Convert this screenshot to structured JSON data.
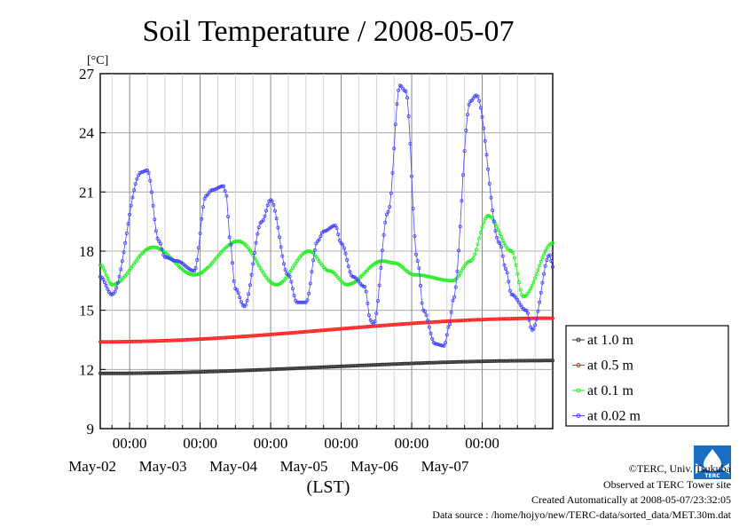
{
  "chart_data": {
    "type": "line",
    "title": "Soil Temperature / 2008-05-07",
    "ylabel": "[°C]",
    "xlabel": "(LST)",
    "ylim": [
      9,
      27
    ],
    "yticks": [
      9,
      12,
      15,
      18,
      21,
      24,
      27
    ],
    "x_unit": "hours since 2008-05-01 00:00 LST",
    "xlim": [
      14,
      168
    ],
    "xtick_labels": [
      {
        "time": "00:00",
        "date": "May-02"
      },
      {
        "time": "00:00",
        "date": "May-03"
      },
      {
        "time": "00:00",
        "date": "May-04"
      },
      {
        "time": "00:00",
        "date": "May-05"
      },
      {
        "time": "00:00",
        "date": "May-06"
      },
      {
        "time": "00:00",
        "date": "May-07"
      }
    ],
    "grid": true,
    "legend_position": "right",
    "series": [
      {
        "name": "at 1.0 m",
        "color": "#333333",
        "x": [
          14,
          168
        ],
        "y": [
          11.8,
          12.45
        ]
      },
      {
        "name": "at 0.5 m",
        "color": "#ff2222",
        "x": [
          14,
          168
        ],
        "y": [
          13.4,
          14.6
        ]
      },
      {
        "name": "at 0.1 m",
        "color": "#22ee22",
        "x": [
          14,
          18,
          32,
          46,
          61,
          74,
          85,
          92,
          98,
          110,
          114,
          121,
          134,
          140,
          146,
          154,
          158,
          168
        ],
        "y": [
          17.3,
          16.3,
          18.2,
          16.8,
          18.5,
          16.3,
          18.0,
          17.0,
          16.3,
          17.5,
          17.4,
          16.8,
          16.5,
          17.5,
          19.8,
          18.0,
          15.7,
          18.4
        ]
      },
      {
        "name": "at 0.02 m",
        "color": "#4444ff",
        "x": [
          14,
          18,
          28,
          30,
          34,
          36,
          40,
          46,
          50,
          52,
          56,
          57,
          58,
          60,
          63,
          69,
          72,
          78,
          81,
          84,
          88,
          90,
          94,
          96,
          100,
          104,
          106,
          107,
          112,
          116,
          118,
          122,
          124,
          128,
          131,
          133,
          134,
          140,
          142,
          150,
          152,
          154,
          159,
          161,
          167,
          168
        ],
        "y": [
          16.7,
          15.8,
          22.0,
          22.1,
          18.5,
          17.7,
          17.5,
          17.0,
          20.8,
          21.1,
          21.3,
          20.8,
          18.7,
          16.1,
          15.2,
          19.5,
          20.6,
          16.8,
          15.4,
          15.4,
          18.5,
          19.0,
          19.3,
          18.4,
          16.7,
          16.2,
          14.5,
          14.3,
          20.0,
          26.4,
          26.1,
          17.5,
          15.0,
          13.3,
          13.2,
          14.3,
          15.5,
          25.6,
          25.9,
          18.4,
          17.1,
          15.8,
          15.0,
          14.0,
          17.8,
          17.2
        ]
      }
    ]
  },
  "footer": {
    "copyright": "©TERC, Univ. Tsukuba",
    "observed": "Observed at TERC Tower site",
    "created": "Created Automatically at 2008-05-07/23:32:05",
    "source": "Data source : /home/hojyo/new/TERC-data/sorted_data/MET.30m.dat",
    "logo_text": "TERC"
  }
}
